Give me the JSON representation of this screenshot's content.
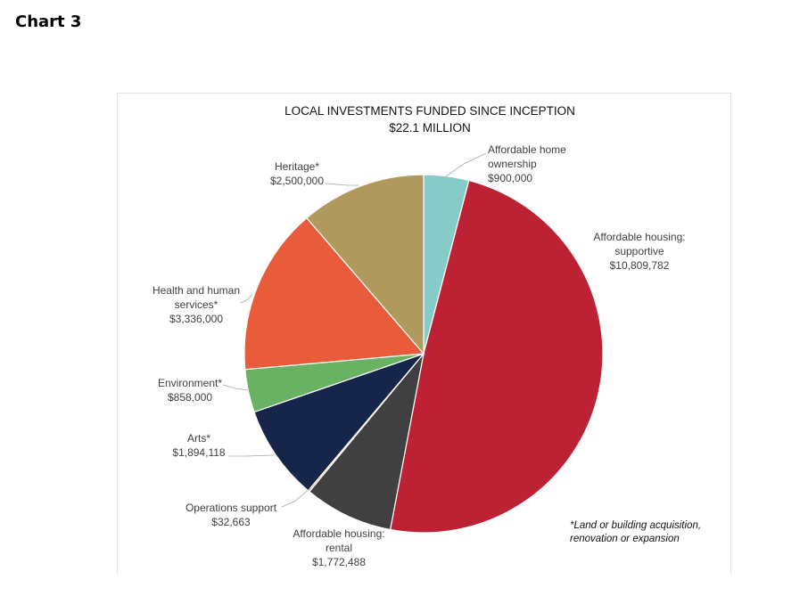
{
  "heading": "Chart 3",
  "chart_data": {
    "type": "pie",
    "title": "LOCAL INVESTMENTS FUNDED SINCE INCEPTION",
    "subtitle": "$22.1 MILLION",
    "slices": [
      {
        "name": "Affordable home ownership",
        "label_lines": [
          "Affordable home",
          "ownership"
        ],
        "value": 900000,
        "value_label": "$900,000",
        "color": "#86cbc8"
      },
      {
        "name": "Affordable housing: supportive",
        "label_lines": [
          "Affordable housing:",
          "supportive"
        ],
        "value": 10809782,
        "value_label": "$10,809,782",
        "color": "#bc2134"
      },
      {
        "name": "Affordable housing: rental",
        "label_lines": [
          "Affordable housing:",
          "rental"
        ],
        "value": 1772488,
        "value_label": "$1,772,488",
        "color": "#404040"
      },
      {
        "name": "Operations support",
        "label_lines": [
          "Operations support"
        ],
        "value": 32663,
        "value_label": "$32,663",
        "color": "#d4a534"
      },
      {
        "name": "Arts*",
        "label_lines": [
          "Arts*"
        ],
        "value": 1894118,
        "value_label": "$1,894,118",
        "color": "#16264a"
      },
      {
        "name": "Environment*",
        "label_lines": [
          "Environment*"
        ],
        "value": 858000,
        "value_label": "$858,000",
        "color": "#6ab263"
      },
      {
        "name": "Health and human services*",
        "label_lines": [
          "Health and human",
          "services*"
        ],
        "value": 3336000,
        "value_label": "$3,336,000",
        "color": "#e85c3c"
      },
      {
        "name": "Heritage*",
        "label_lines": [
          "Heritage*"
        ],
        "value": 2500000,
        "value_label": "$2,500,000",
        "color": "#b0995c"
      }
    ],
    "footnote_lines": [
      "*Land or building acquisition,",
      "renovation or expansion"
    ],
    "legend": "none"
  }
}
